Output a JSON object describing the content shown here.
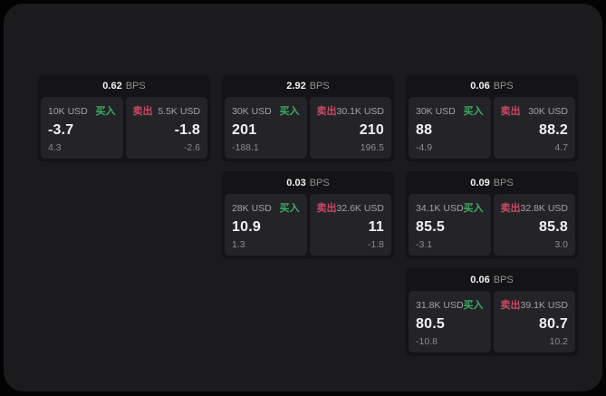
{
  "labels": {
    "bps_unit": "BPS",
    "buy": "买入",
    "sell": "卖出"
  },
  "colors": {
    "outside_bg": "#030303",
    "panel_bg": "#1b1b1d",
    "card_bg": "#141416",
    "tile_bg": "#242428",
    "buy_green": "#3dab64",
    "sell_red": "#ca4a63",
    "value_white": "#f2f2f2",
    "label_gray": "#a3a3a3",
    "sub_gray": "#8b8b8b"
  },
  "cards": [
    {
      "bps": "0.62",
      "buy": {
        "amount": "10K USD",
        "value": "-3.7",
        "sub": "4.3"
      },
      "sell": {
        "amount": "5.5K USD",
        "value": "-1.8",
        "sub": "-2.6"
      }
    },
    {
      "bps": "2.92",
      "buy": {
        "amount": "30K USD",
        "value": "201",
        "sub": "-188.1"
      },
      "sell": {
        "amount": "30.1K USD",
        "value": "210",
        "sub": "196.5"
      }
    },
    {
      "bps": "0.06",
      "buy": {
        "amount": "30K USD",
        "value": "88",
        "sub": "-4.9"
      },
      "sell": {
        "amount": "30K USD",
        "value": "88.2",
        "sub": "4.7"
      }
    },
    {
      "bps": "0.03",
      "buy": {
        "amount": "28K USD",
        "value": "10.9",
        "sub": "1.3"
      },
      "sell": {
        "amount": "32.6K USD",
        "value": "11",
        "sub": "-1.8"
      }
    },
    {
      "bps": "0.09",
      "buy": {
        "amount": "34.1K USD",
        "value": "85.5",
        "sub": "-3.1"
      },
      "sell": {
        "amount": "32.8K USD",
        "value": "85.8",
        "sub": "3.0"
      }
    },
    {
      "bps": "0.06",
      "buy": {
        "amount": "31.8K USD",
        "value": "80.5",
        "sub": "-10.8"
      },
      "sell": {
        "amount": "39.1K USD",
        "value": "80.7",
        "sub": "10.2"
      }
    }
  ]
}
